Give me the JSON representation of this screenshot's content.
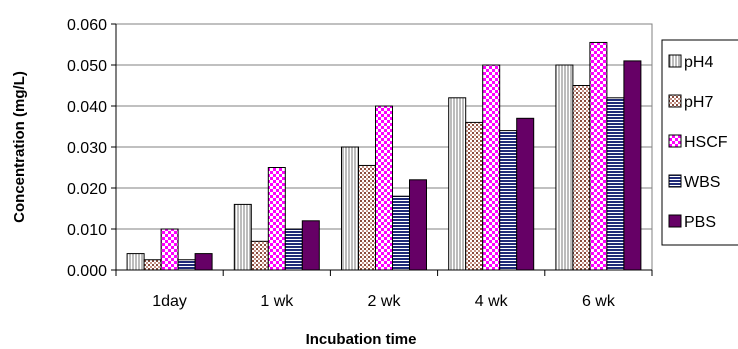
{
  "chart_data": {
    "type": "bar",
    "title": "",
    "xlabel": "Incubation time",
    "ylabel": "Concentration (mg/L)",
    "ylim": [
      0,
      0.06
    ],
    "yticks": [
      "0.000",
      "0.010",
      "0.020",
      "0.030",
      "0.040",
      "0.050",
      "0.060"
    ],
    "grid": true,
    "legend_position": "right",
    "categories": [
      "1day",
      "1 wk",
      "2 wk",
      "4 wk",
      "6 wk"
    ],
    "series": [
      {
        "name": "pH4",
        "pattern": "vertical-lines",
        "color": "#ffffff",
        "values": [
          0.004,
          0.016,
          0.03,
          0.042,
          0.05
        ]
      },
      {
        "name": "pH7",
        "pattern": "grid-brown",
        "color": "#8a4a3c",
        "values": [
          0.0025,
          0.007,
          0.0255,
          0.036,
          0.045
        ]
      },
      {
        "name": "HSCF",
        "pattern": "checker-magenta",
        "color": "#ff00ff",
        "values": [
          0.01,
          0.025,
          0.04,
          0.05,
          0.0555
        ]
      },
      {
        "name": "WBS",
        "pattern": "horizontal-navy",
        "color": "#1f2a78",
        "values": [
          0.0025,
          0.01,
          0.018,
          0.034,
          0.042
        ]
      },
      {
        "name": "PBS",
        "pattern": "solid",
        "color": "#660066",
        "values": [
          0.004,
          0.012,
          0.022,
          0.037,
          0.051
        ]
      }
    ]
  }
}
